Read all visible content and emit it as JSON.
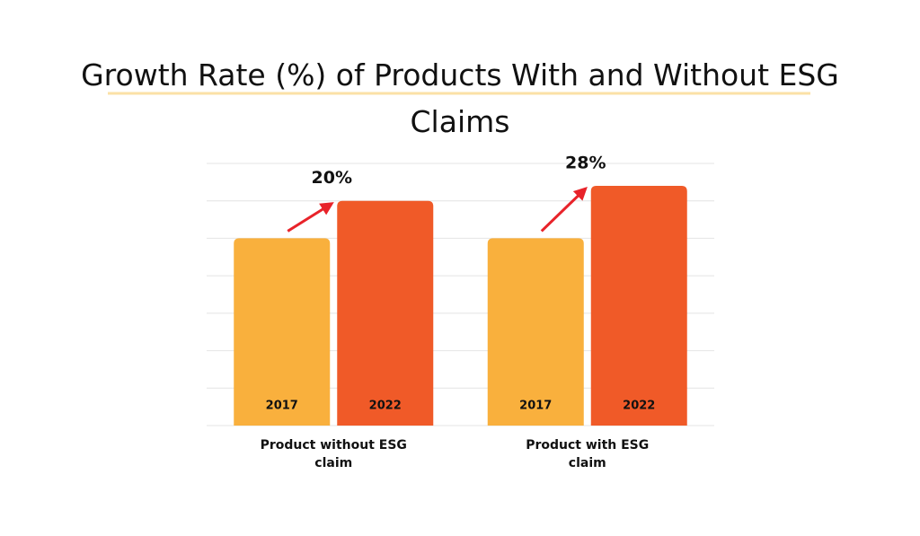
{
  "chart_data": {
    "type": "bar",
    "title": "Growth Rate (%) of Products With and Without ESG Claims",
    "categories": [
      "Product without ESG claim",
      "Product with ESG claim"
    ],
    "series": [
      {
        "name": "2017",
        "color": "#f9b03d",
        "values": [
          5,
          5
        ]
      },
      {
        "name": "2022",
        "color": "#f05a28",
        "values": [
          6,
          6.4
        ]
      }
    ],
    "annotations": [
      "20%",
      "28%"
    ],
    "ylim": [
      0,
      7
    ],
    "yticks": [
      0,
      1,
      2,
      3,
      4,
      5,
      6,
      7
    ],
    "grid": true
  }
}
